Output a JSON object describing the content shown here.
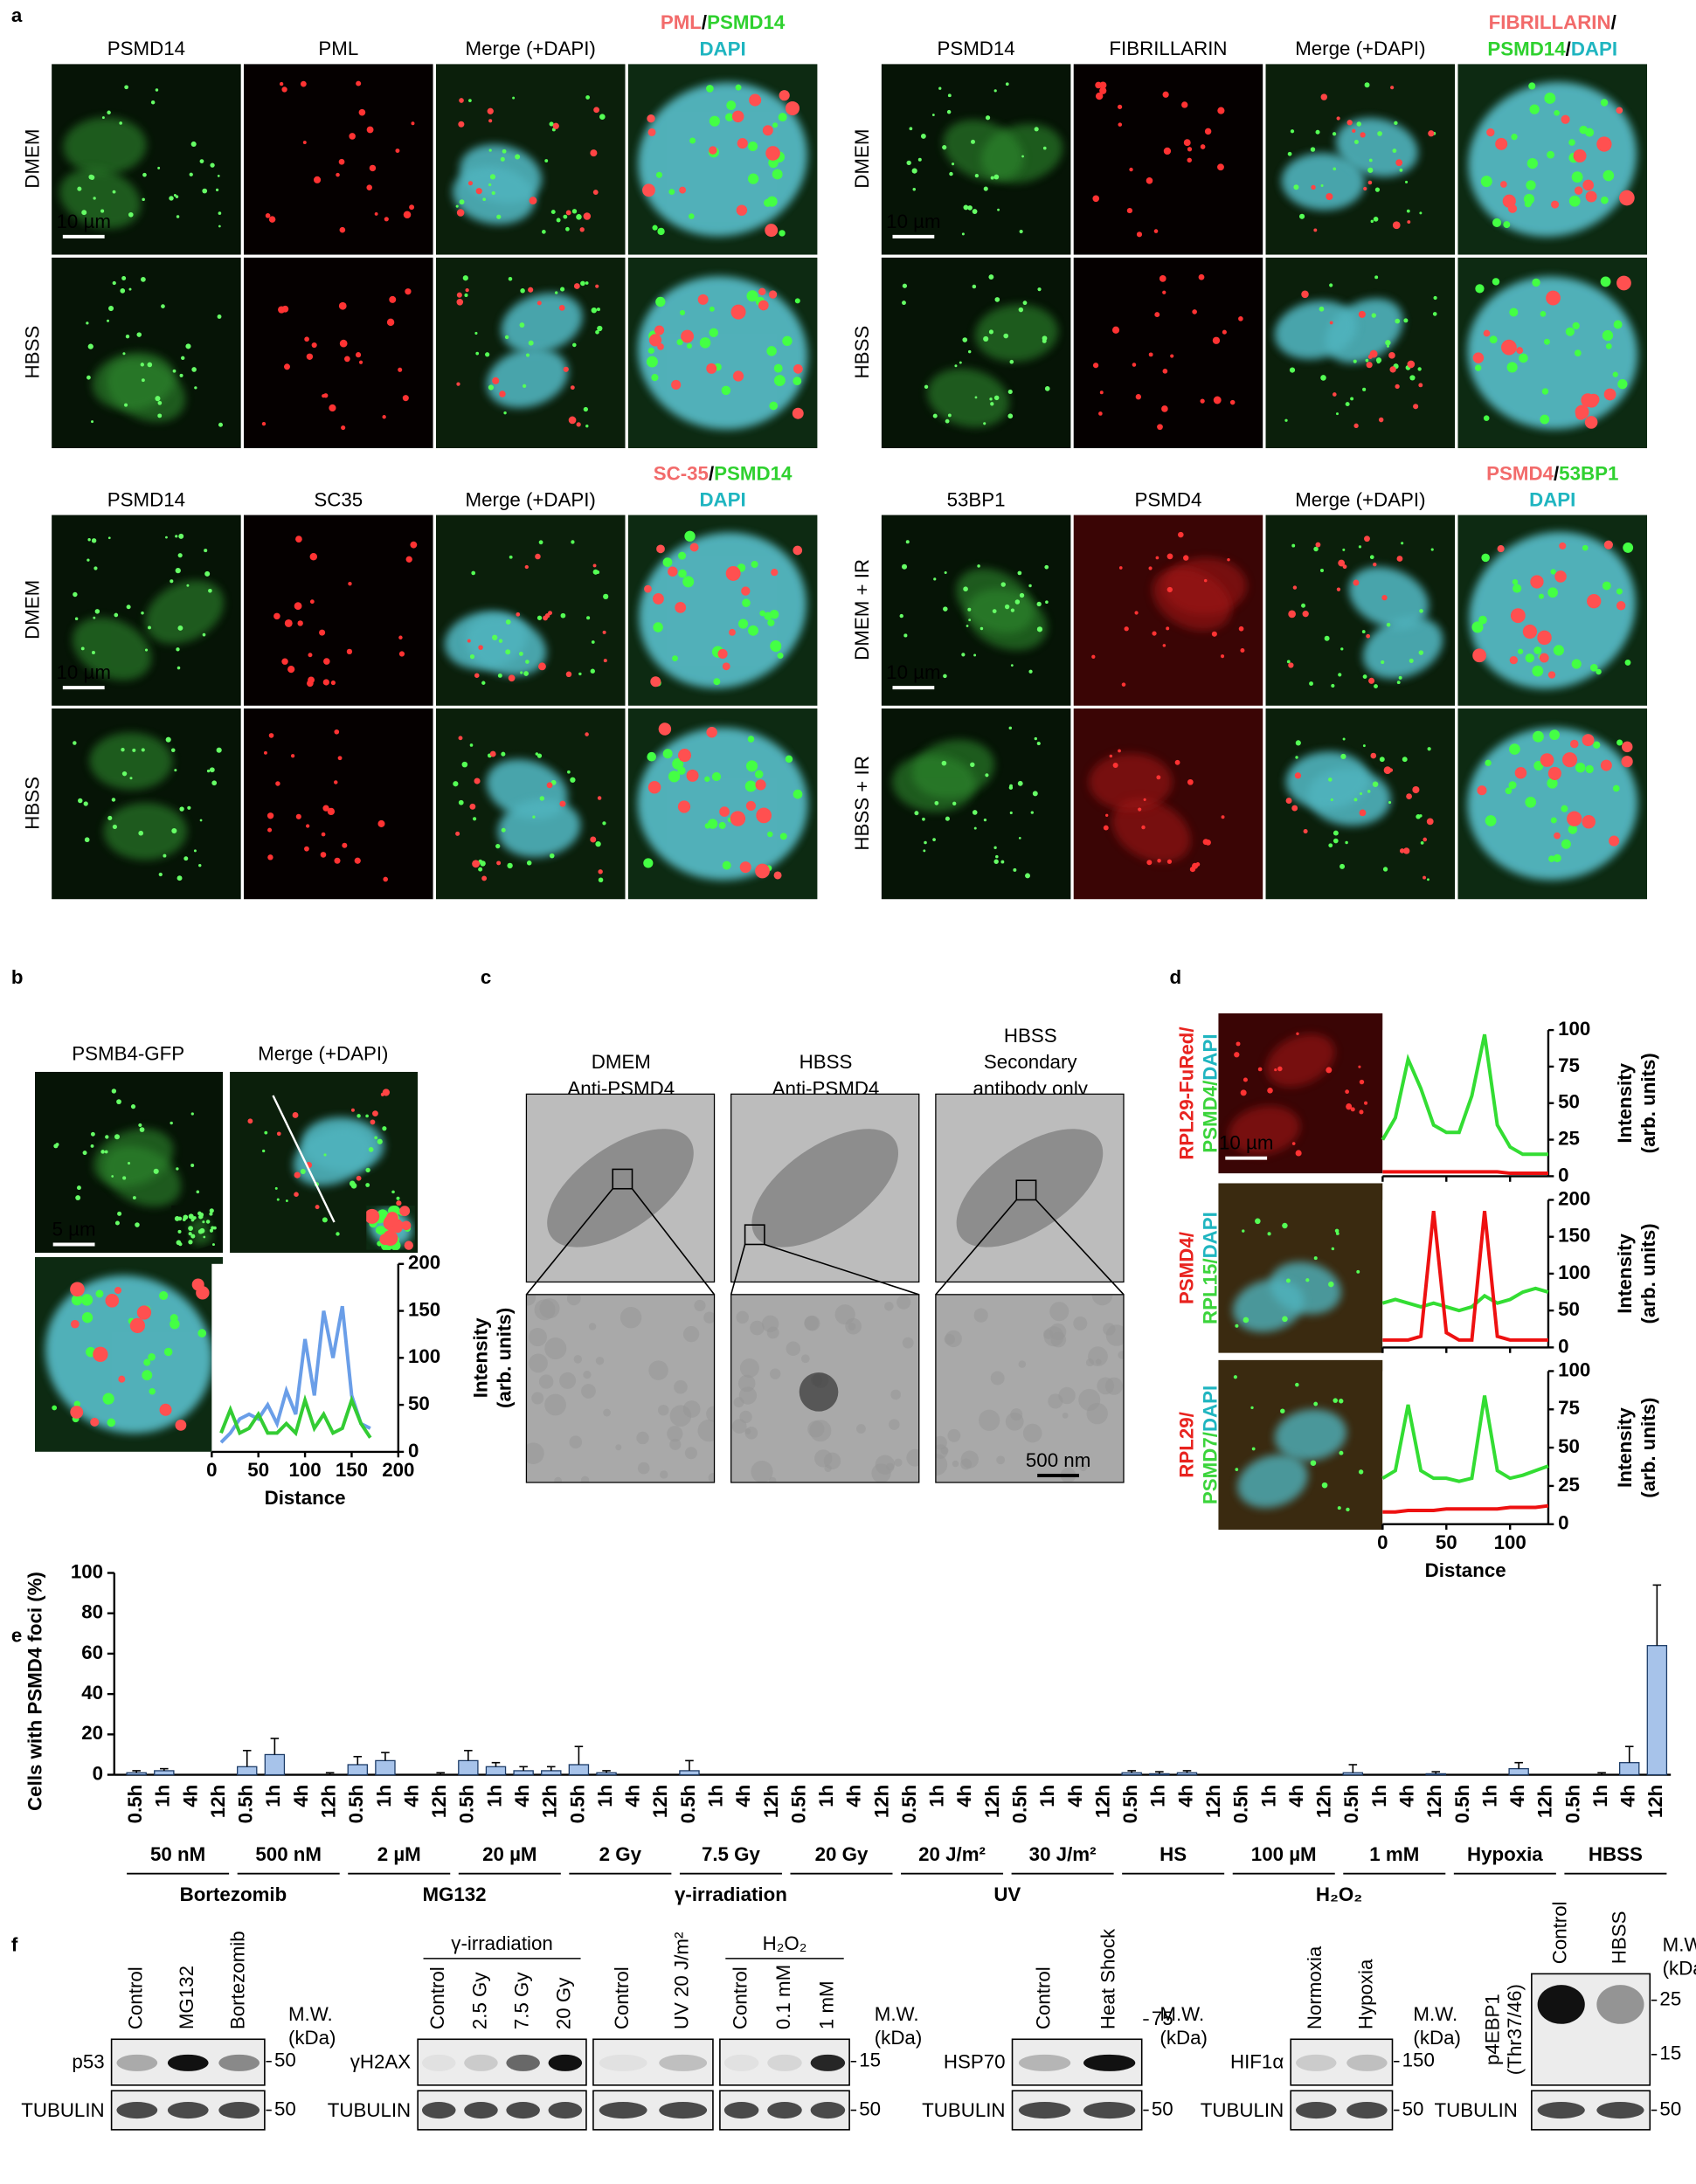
{
  "panels": {
    "a": {
      "label": "a",
      "groups": [
        {
          "legend": [
            [
              {
                "text": "PML",
                "color": "#f26b6b"
              },
              {
                "text": "/",
                "color": "#000000"
              },
              {
                "text": "PSMD14",
                "color": "#2fd12f"
              }
            ],
            [
              {
                "text": "DAPI",
                "color": "#1fb5c0"
              }
            ]
          ],
          "columns": [
            "PSMD14",
            "PML",
            "Merge (+DAPI)"
          ],
          "rows": [
            "DMEM",
            "HBSS"
          ],
          "scale_bar": "10 µm"
        },
        {
          "legend": [
            [
              {
                "text": "FIBRILLARIN",
                "color": "#f26b6b"
              },
              {
                "text": "/",
                "color": "#000000"
              }
            ],
            [
              {
                "text": "PSMD14",
                "color": "#2fd12f"
              },
              {
                "text": "/",
                "color": "#000000"
              },
              {
                "text": "DAPI",
                "color": "#1fb5c0"
              }
            ]
          ],
          "columns": [
            "PSMD14",
            "FIBRILLARIN",
            "Merge (+DAPI)"
          ],
          "rows": [
            "DMEM",
            "HBSS"
          ],
          "scale_bar": "10 µm"
        },
        {
          "legend": [
            [
              {
                "text": "SC-35",
                "color": "#f26b6b"
              },
              {
                "text": "/",
                "color": "#000000"
              },
              {
                "text": "PSMD14",
                "color": "#2fd12f"
              }
            ],
            [
              {
                "text": "DAPI",
                "color": "#1fb5c0"
              }
            ]
          ],
          "columns": [
            "PSMD14",
            "SC35",
            "Merge (+DAPI)"
          ],
          "rows": [
            "DMEM",
            "HBSS"
          ],
          "scale_bar": "10 µm"
        },
        {
          "legend": [
            [
              {
                "text": "PSMD4",
                "color": "#f26b6b"
              },
              {
                "text": "/",
                "color": "#000000"
              },
              {
                "text": "53BP1",
                "color": "#2fd12f"
              }
            ],
            [
              {
                "text": "DAPI",
                "color": "#1fb5c0"
              }
            ]
          ],
          "columns": [
            "53BP1",
            "PSMD4",
            "Merge (+DAPI)"
          ],
          "rows": [
            "DMEM + IR",
            "HBSS + IR"
          ],
          "scale_bar": "10 µm"
        }
      ]
    },
    "b": {
      "label": "b",
      "columns": [
        "PSMB4-GFP",
        "Merge (+DAPI)"
      ],
      "scale_bar": "5 µm",
      "chart": {
        "type": "line",
        "x": [
          10,
          20,
          30,
          40,
          50,
          60,
          70,
          80,
          90,
          100,
          110,
          120,
          130,
          140,
          150,
          160,
          170
        ],
        "xlim": [
          0,
          200
        ],
        "xticks": [
          0,
          50,
          100,
          150,
          200
        ],
        "ylim": [
          0,
          200
        ],
        "yticks": [
          0,
          50,
          100,
          150,
          200
        ],
        "xlabel": "Distance",
        "ylabel": [
          "Intensity",
          "(arb. units)"
        ],
        "series": [
          {
            "color": "#6a9ee8",
            "values": [
              10,
              20,
              35,
              40,
              35,
              50,
              30,
              65,
              40,
              120,
              60,
              150,
              100,
              155,
              60,
              30,
              25
            ]
          },
          {
            "color": "#33cc33",
            "values": [
              20,
              45,
              20,
              25,
              40,
              20,
              20,
              30,
              20,
              55,
              25,
              40,
              20,
              25,
              55,
              30,
              15
            ]
          }
        ]
      }
    },
    "c": {
      "label": "c",
      "columns": [
        [
          "DMEM",
          "Anti-PSMD4"
        ],
        [
          "HBSS",
          "Anti-PSMD4"
        ],
        [
          "HBSS",
          "Secondary",
          "antibody only"
        ]
      ],
      "scale_bar": "500 nm"
    },
    "d": {
      "label": "d",
      "scale_bar": "10 µm",
      "x": [
        0,
        10,
        20,
        30,
        40,
        50,
        60,
        70,
        80,
        90,
        100,
        110,
        120,
        130
      ],
      "xlim": [
        0,
        130
      ],
      "xticks": [
        0,
        50,
        100
      ],
      "xlabel": "Distance",
      "rows": [
        {
          "label": [
            [
              {
                "text": "RPL29-FuRed/",
                "color": "#e8231f"
              }
            ],
            [
              {
                "text": "PSMD4/",
                "color": "#3bd43b"
              },
              {
                "text": "DAPI",
                "color": "#1fb5c0"
              }
            ]
          ],
          "chart": {
            "type": "line",
            "ylim": [
              0,
              100
            ],
            "yticks": [
              0,
              25,
              50,
              75,
              100
            ],
            "ylabel": [
              "Intensity",
              "(arb. units)"
            ],
            "series": [
              {
                "color": "#33dd33",
                "values": [
                  25,
                  40,
                  80,
                  60,
                  35,
                  30,
                  30,
                  55,
                  97,
                  35,
                  20,
                  15,
                  15,
                  15
                ]
              },
              {
                "color": "#ee1111",
                "values": [
                  3,
                  3,
                  3,
                  3,
                  3,
                  3,
                  3,
                  3,
                  3,
                  3,
                  2,
                  2,
                  2,
                  2
                ]
              }
            ]
          }
        },
        {
          "label": [
            [
              {
                "text": "PSMD4/",
                "color": "#e8231f"
              }
            ],
            [
              {
                "text": "RPL15/",
                "color": "#3bd43b"
              },
              {
                "text": "DAPI",
                "color": "#1fb5c0"
              }
            ]
          ],
          "chart": {
            "type": "line",
            "ylim": [
              0,
              200
            ],
            "yticks": [
              0,
              50,
              100,
              150,
              200
            ],
            "ylabel": [
              "Intensity",
              "(arb. units)"
            ],
            "series": [
              {
                "color": "#33dd33",
                "values": [
                  60,
                  65,
                  60,
                  55,
                  60,
                  55,
                  50,
                  55,
                  70,
                  60,
                  65,
                  75,
                  80,
                  75
                ]
              },
              {
                "color": "#ee1111",
                "values": [
                  10,
                  10,
                  10,
                  15,
                  185,
                  20,
                  10,
                  10,
                  185,
                  15,
                  10,
                  10,
                  10,
                  10
                ]
              }
            ]
          }
        },
        {
          "label": [
            [
              {
                "text": "RPL29/",
                "color": "#e8231f"
              }
            ],
            [
              {
                "text": "PSMD7/",
                "color": "#3bd43b"
              },
              {
                "text": "DAPI",
                "color": "#1fb5c0"
              }
            ]
          ],
          "chart": {
            "type": "line",
            "ylim": [
              0,
              100
            ],
            "yticks": [
              0,
              25,
              50,
              75,
              100
            ],
            "ylabel": [
              "Intensity",
              "(arb. units)"
            ],
            "series": [
              {
                "color": "#33dd33",
                "values": [
                  30,
                  35,
                  78,
                  35,
                  30,
                  30,
                  28,
                  30,
                  84,
                  35,
                  30,
                  32,
                  35,
                  38
                ]
              },
              {
                "color": "#ee1111",
                "values": [
                  8,
                  8,
                  9,
                  9,
                  9,
                  10,
                  10,
                  10,
                  10,
                  10,
                  11,
                  11,
                  11,
                  12
                ]
              }
            ]
          }
        }
      ]
    },
    "e": {
      "label": "e",
      "type": "bar",
      "color": "#a7c3ea",
      "ylabel": "Cells with  PSMD4 foci (%)",
      "ylim": [
        0,
        100
      ],
      "yticks": [
        0,
        20,
        40,
        60,
        80,
        100
      ],
      "groups": [
        {
          "name": "Bortezomib",
          "subgroups": [
            {
              "label": "50 nM",
              "categories": [
                "0.5h",
                "1h",
                "4h",
                "12h"
              ],
              "values": [
                1,
                2,
                0,
                0
              ],
              "errors": [
                1,
                1,
                0,
                0
              ]
            },
            {
              "label": "500 nM",
              "categories": [
                "0.5h",
                "1h",
                "4h",
                "12h"
              ],
              "values": [
                4,
                10,
                0,
                0
              ],
              "errors": [
                8,
                8,
                0,
                1
              ]
            }
          ]
        },
        {
          "name": "MG132",
          "subgroups": [
            {
              "label": "2 µM",
              "categories": [
                "0.5h",
                "1h",
                "4h",
                "12h"
              ],
              "values": [
                5,
                7,
                0,
                0
              ],
              "errors": [
                4,
                4,
                0,
                1
              ]
            },
            {
              "label": "20 µM",
              "categories": [
                "0.5h",
                "1h",
                "4h",
                "12h"
              ],
              "values": [
                7,
                4,
                2,
                2
              ],
              "errors": [
                5,
                2,
                2,
                2
              ]
            }
          ]
        },
        {
          "name": "γ-irradiation",
          "subgroups": [
            {
              "label": "2 Gy",
              "categories": [
                "0.5h",
                "1h",
                "4h",
                "12h"
              ],
              "values": [
                5,
                1,
                0,
                0
              ],
              "errors": [
                9,
                1,
                0,
                0
              ]
            },
            {
              "label": "7.5 Gy",
              "categories": [
                "0.5h",
                "1h",
                "4h",
                "12h"
              ],
              "values": [
                2,
                0,
                0,
                0
              ],
              "errors": [
                5,
                0,
                0,
                0
              ]
            },
            {
              "label": "20 Gy",
              "categories": [
                "0.5h",
                "1h",
                "4h",
                "12h"
              ],
              "values": [
                0,
                0,
                0,
                0
              ],
              "errors": [
                0,
                0,
                0,
                0
              ]
            }
          ]
        },
        {
          "name": "UV",
          "subgroups": [
            {
              "label": "20 J/m²",
              "categories": [
                "0.5h",
                "1h",
                "4h",
                "12h"
              ],
              "values": [
                0,
                0,
                0,
                0
              ],
              "errors": [
                0,
                0,
                0,
                0
              ]
            },
            {
              "label": "30 J/m²",
              "categories": [
                "0.5h",
                "1h",
                "4h",
                "12h"
              ],
              "values": [
                0,
                0,
                0,
                0
              ],
              "errors": [
                0,
                0,
                0,
                0
              ]
            }
          ]
        },
        {
          "subgroups": [
            {
              "label": "HS",
              "categories": [
                "0.5h",
                "1h",
                "4h",
                "12h"
              ],
              "values": [
                1,
                0.5,
                1,
                0
              ],
              "errors": [
                1,
                1,
                1,
                0
              ]
            }
          ]
        },
        {
          "name": "H₂O₂",
          "subgroups": [
            {
              "label": "100 µM",
              "categories": [
                "0.5h",
                "1h",
                "4h",
                "12h"
              ],
              "values": [
                0,
                0,
                0,
                0
              ],
              "errors": [
                0,
                0,
                0,
                0
              ]
            },
            {
              "label": "1 mM",
              "categories": [
                "0.5h",
                "1h",
                "4h",
                "12h"
              ],
              "values": [
                1,
                0,
                0,
                0.5
              ],
              "errors": [
                4,
                0,
                0,
                1
              ]
            }
          ]
        },
        {
          "subgroups": [
            {
              "label": "Hypoxia",
              "categories": [
                "0.5h",
                "1h",
                "4h",
                "12h"
              ],
              "values": [
                0,
                0,
                3,
                0
              ],
              "errors": [
                0,
                0,
                3,
                0
              ]
            }
          ]
        },
        {
          "subgroups": [
            {
              "label": "HBSS",
              "categories": [
                "0.5h",
                "1h",
                "4h",
                "12h"
              ],
              "values": [
                0,
                0,
                6,
                64
              ],
              "errors": [
                0,
                1,
                8,
                30
              ]
            }
          ]
        }
      ]
    },
    "f": {
      "label": "f",
      "groups": [
        {
          "target": "p53",
          "blots": [
            {
              "lanes": [
                "Control",
                "MG132",
                "Bortezomib"
              ]
            }
          ],
          "markers": [
            "50"
          ],
          "tubulin": "TUBULIN",
          "tubulin_marker": "50",
          "mw": [
            "M.W.",
            "(kDa)"
          ]
        },
        {
          "target": "γH2AX",
          "blots": [
            {
              "header": "γ-irradiation",
              "lanes": [
                "Control",
                "2.5 Gy",
                "7.5 Gy",
                "20 Gy"
              ]
            },
            {
              "lanes": [
                "Control",
                "UV 20 J/m²"
              ]
            },
            {
              "header": "H₂O₂",
              "lanes": [
                "Control",
                "0.1 mM",
                "1 mM"
              ]
            }
          ],
          "markers": [
            "15"
          ],
          "tubulin": "TUBULIN",
          "tubulin_marker": "50",
          "mw": [
            "M.W.",
            "(kDa)"
          ]
        },
        {
          "target": "HSP70",
          "blots": [
            {
              "lanes": [
                "Control",
                "Heat Shock"
              ]
            }
          ],
          "markers": [
            "75"
          ],
          "tubulin": "TUBULIN",
          "tubulin_marker": "50",
          "mw": [
            "M.W.",
            "(kDa)"
          ]
        },
        {
          "target": "HIF1α",
          "blots": [
            {
              "lanes": [
                "Normoxia",
                "Hypoxia"
              ]
            }
          ],
          "markers": [
            "150"
          ],
          "tubulin": "TUBULIN",
          "tubulin_marker": "50",
          "mw": [
            "M.W.",
            "(kDa)"
          ]
        },
        {
          "target": [
            "p4EBP1",
            "(Thr37/46)"
          ],
          "blots": [
            {
              "lanes": [
                "Control",
                "HBSS"
              ]
            }
          ],
          "markers": [
            "25",
            "15"
          ],
          "tubulin": "TUBULIN",
          "tubulin_marker": "50",
          "mw": [
            "M.W.",
            "(kDa)"
          ]
        }
      ]
    }
  }
}
